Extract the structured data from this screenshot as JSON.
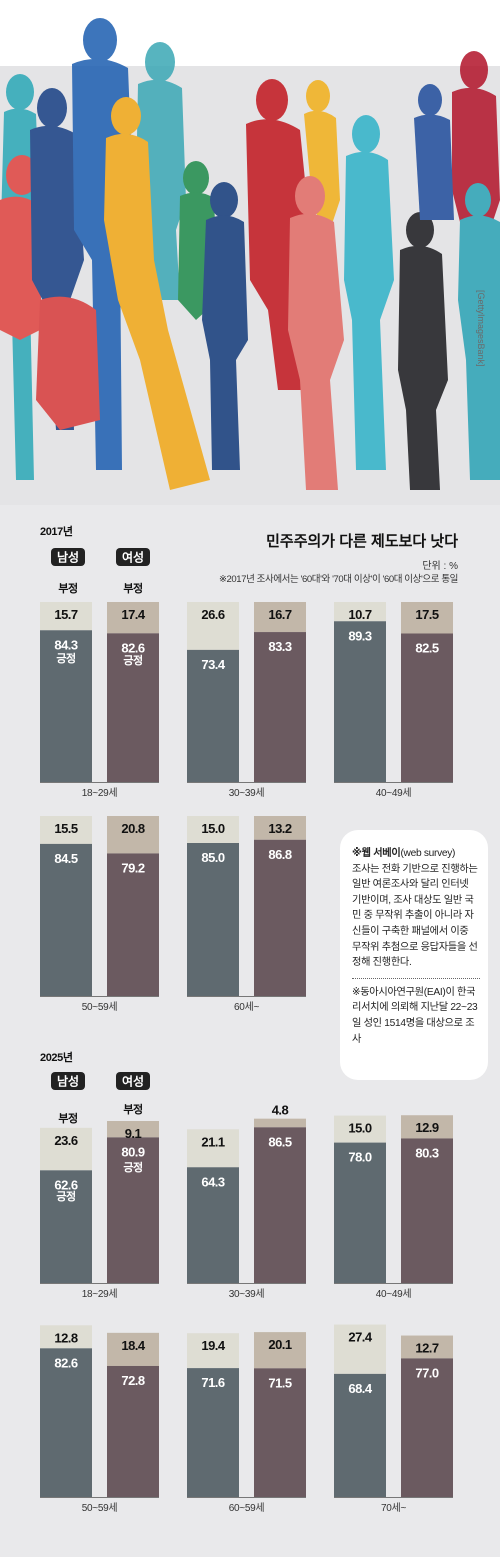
{
  "image_credit": "[GettyImagesBank]",
  "header": {
    "title": "민주주의가 다른 제도보다 낫다",
    "unit": "단위 : %",
    "note": "※2017년 조사에서는 '60대'와 '70대 이상'이 '60대 이상'으로 통일"
  },
  "legend": {
    "male": "남성",
    "female": "여성",
    "negative": "부정",
    "positive": "긍정"
  },
  "note_box": {
    "line1_bold": "※웹 서베이",
    "line1_rest": "(web survey)",
    "para1": "조사는 전화 기반으로 진행하는 일반 여론조사와 달리 인터넷 기반이며, 조사 대상도 일반 국민 중 무작위 추출이 아니라 자신들이 구축한 패널에서 이중 무작위 추첨으로 응답자들을 선정해 진행한다.",
    "para2": "※동아시아연구원(EAI)이 한국리서치에 의뢰해 지난달 22~23일 성인 1514명을 대상으로 조사"
  },
  "colors": {
    "positive_male": "#5f6a70",
    "positive_female": "#6b5a60",
    "negative_male": "#deddd3",
    "negative_female": "#c2b7a9",
    "background": "#e9e9eb"
  },
  "chart_data": [
    {
      "type": "bar",
      "stacked": true,
      "title": "2017년",
      "ylim": [
        0,
        100
      ],
      "groups": [
        {
          "label": "18~29세",
          "male": {
            "positive": "84.3",
            "negative": "15.7"
          },
          "female": {
            "positive": "82.6",
            "negative": "17.4"
          }
        },
        {
          "label": "30~39세",
          "male": {
            "positive": "73.4",
            "negative": "26.6"
          },
          "female": {
            "positive": "83.3",
            "negative": "16.7"
          }
        },
        {
          "label": "40~49세",
          "male": {
            "positive": "89.3",
            "negative": "10.7"
          },
          "female": {
            "positive": "82.5",
            "negative": "17.5"
          }
        },
        {
          "label": "50~59세",
          "male": {
            "positive": "84.5",
            "negative": "15.5"
          },
          "female": {
            "positive": "79.2",
            "negative": "20.8"
          }
        },
        {
          "label": "60세~",
          "male": {
            "positive": "85.0",
            "negative": "15.0"
          },
          "female": {
            "positive": "86.8",
            "negative": "13.2"
          }
        }
      ]
    },
    {
      "type": "bar",
      "stacked": true,
      "title": "2025년",
      "ylim": [
        0,
        100
      ],
      "groups": [
        {
          "label": "18~29세",
          "male": {
            "positive": "62.6",
            "negative": "23.6"
          },
          "female": {
            "positive": "80.9",
            "negative": "9.1"
          }
        },
        {
          "label": "30~39세",
          "male": {
            "positive": "64.3",
            "negative": "21.1"
          },
          "female": {
            "positive": "86.5",
            "negative": "4.8"
          }
        },
        {
          "label": "40~49세",
          "male": {
            "positive": "78.0",
            "negative": "15.0"
          },
          "female": {
            "positive": "80.3",
            "negative": "12.9"
          }
        },
        {
          "label": "50~59세",
          "male": {
            "positive": "82.6",
            "negative": "12.8"
          },
          "female": {
            "positive": "72.8",
            "negative": "18.4"
          }
        },
        {
          "label": "60~59세",
          "male": {
            "positive": "71.6",
            "negative": "19.4"
          },
          "female": {
            "positive": "71.5",
            "negative": "20.1"
          }
        },
        {
          "label": "70세~",
          "male": {
            "positive": "68.4",
            "negative": "27.4"
          },
          "female": {
            "positive": "77.0",
            "negative": "12.7"
          }
        }
      ]
    }
  ]
}
